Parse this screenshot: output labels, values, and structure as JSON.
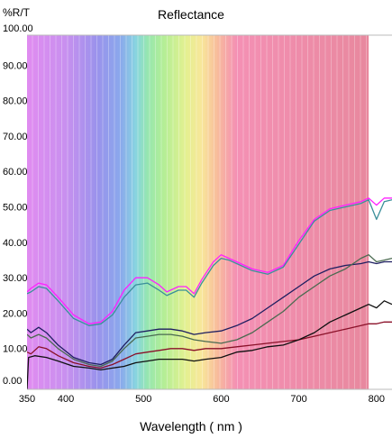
{
  "chart_data": {
    "type": "line",
    "title": "Reflectance",
    "ylabel": "%R/T",
    "xlabel": "Wavelength ( nm )",
    "xlim": [
      350,
      820
    ],
    "ylim": [
      0,
      100
    ],
    "xticks": [
      350,
      400,
      500,
      600,
      700,
      800
    ],
    "yticks": [
      "0.00",
      "10.00",
      "20.00",
      "30.00",
      "40.00",
      "50.00",
      "60.00",
      "70.00",
      "80.00",
      "90.00",
      "100.00"
    ],
    "spectrum_background": {
      "x_range": [
        350,
        790
      ],
      "stops": [
        {
          "x": 350,
          "color": "#e08cf0"
        },
        {
          "x": 400,
          "color": "#c890ef"
        },
        {
          "x": 440,
          "color": "#9a92ec"
        },
        {
          "x": 470,
          "color": "#8aa8ec"
        },
        {
          "x": 490,
          "color": "#88d4e0"
        },
        {
          "x": 505,
          "color": "#96e6b0"
        },
        {
          "x": 525,
          "color": "#b2ee96"
        },
        {
          "x": 555,
          "color": "#e4f090"
        },
        {
          "x": 575,
          "color": "#f8e69a"
        },
        {
          "x": 595,
          "color": "#f8bc9c"
        },
        {
          "x": 620,
          "color": "#f490b4"
        },
        {
          "x": 790,
          "color": "#e8889e"
        }
      ]
    },
    "series": [
      {
        "color": "#ff20ff",
        "x": [
          350,
          355,
          365,
          375,
          390,
          410,
          430,
          445,
          460,
          475,
          490,
          505,
          520,
          530,
          545,
          555,
          565,
          575,
          590,
          600,
          610,
          620,
          640,
          660,
          680,
          700,
          720,
          740,
          760,
          780,
          790,
          800,
          810,
          820
        ],
        "y": [
          27.5,
          28.5,
          30,
          29.5,
          26,
          21,
          18.5,
          19,
          22,
          28,
          31.5,
          31.5,
          29.5,
          27.5,
          29,
          29,
          27,
          31,
          36,
          38,
          37,
          36,
          34,
          33,
          35,
          42,
          48,
          51,
          52,
          53,
          54,
          52,
          54,
          54
        ]
      },
      {
        "color": "#3a8f9a",
        "x": [
          350,
          355,
          365,
          375,
          390,
          410,
          430,
          445,
          460,
          475,
          490,
          505,
          520,
          530,
          545,
          555,
          565,
          575,
          590,
          600,
          610,
          620,
          640,
          660,
          680,
          700,
          720,
          740,
          760,
          780,
          790,
          800,
          810,
          820
        ],
        "y": [
          27,
          27.5,
          29,
          28.5,
          25,
          20,
          18,
          18.5,
          21,
          26,
          29.5,
          30,
          28,
          26.5,
          28,
          28,
          26,
          30,
          35,
          37,
          36.5,
          35.5,
          33.5,
          32.5,
          34.5,
          41,
          47.5,
          50.5,
          51.5,
          52.5,
          53.5,
          48,
          53,
          53.5
        ]
      },
      {
        "color": "#1e1e60",
        "x": [
          350,
          355,
          365,
          375,
          390,
          410,
          430,
          445,
          460,
          475,
          490,
          505,
          520,
          535,
          550,
          565,
          580,
          600,
          620,
          640,
          660,
          680,
          700,
          720,
          740,
          760,
          780,
          790,
          800,
          810,
          820
        ],
        "y": [
          17,
          16,
          17.5,
          16,
          12.5,
          9,
          7.5,
          7,
          8.5,
          12.5,
          16,
          16.5,
          17,
          17,
          16.5,
          15.5,
          16,
          16.5,
          18,
          20,
          23,
          26,
          29,
          32,
          34,
          35,
          35.5,
          36,
          35.5,
          36,
          36
        ]
      },
      {
        "color": "#4a6a50",
        "x": [
          350,
          355,
          365,
          375,
          390,
          410,
          430,
          445,
          460,
          475,
          490,
          505,
          520,
          535,
          550,
          565,
          580,
          600,
          620,
          640,
          660,
          680,
          700,
          720,
          740,
          760,
          780,
          790,
          800,
          810,
          820
        ],
        "y": [
          15.5,
          14.5,
          15.5,
          14.5,
          11.5,
          8.5,
          7,
          6.5,
          8,
          11.5,
          14.5,
          15,
          15.5,
          15.5,
          15,
          14,
          13.5,
          13,
          14,
          16,
          19,
          22,
          26,
          29,
          32,
          34,
          37,
          38,
          36,
          36.5,
          37
        ]
      },
      {
        "color": "#8a1028",
        "x": [
          350,
          355,
          365,
          375,
          390,
          410,
          430,
          445,
          460,
          475,
          490,
          505,
          520,
          535,
          550,
          565,
          580,
          600,
          620,
          640,
          660,
          680,
          700,
          720,
          740,
          760,
          780,
          790,
          800,
          810,
          820
        ],
        "y": [
          10.5,
          10,
          12,
          11.5,
          9.5,
          7.5,
          6.5,
          6,
          7,
          8.5,
          10,
          10.5,
          11,
          11.5,
          11.5,
          11,
          11.5,
          11.5,
          12,
          12.5,
          13,
          13.5,
          14,
          15,
          16,
          17,
          18,
          18.5,
          18.5,
          19,
          19
        ]
      },
      {
        "color": "#101010",
        "x": [
          350,
          352,
          360,
          375,
          390,
          410,
          430,
          445,
          460,
          475,
          490,
          505,
          520,
          535,
          550,
          565,
          580,
          600,
          620,
          640,
          660,
          680,
          700,
          720,
          740,
          760,
          780,
          790,
          800,
          810,
          820
        ],
        "y": [
          0,
          9,
          9.5,
          9,
          8,
          6.5,
          6,
          5.5,
          6,
          6.5,
          7.5,
          8,
          8.5,
          8.5,
          8.5,
          8,
          8.5,
          9,
          10.5,
          11,
          12,
          12.5,
          14,
          16,
          19,
          21,
          23,
          24,
          23,
          25,
          24
        ]
      }
    ]
  }
}
